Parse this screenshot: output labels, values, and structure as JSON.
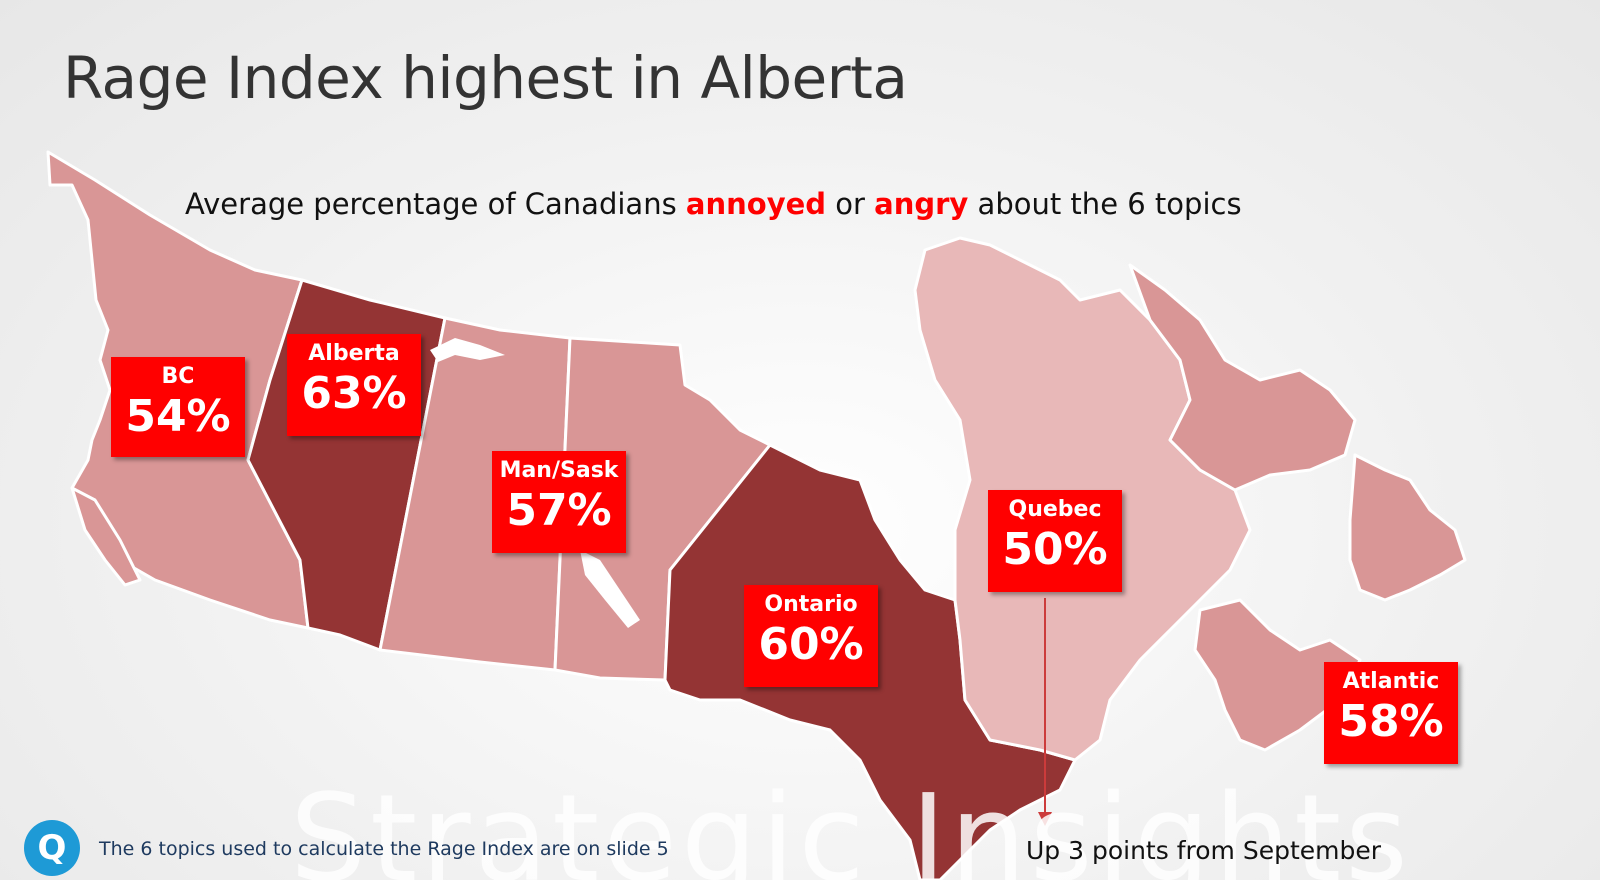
{
  "title": "Rage Index highest in Alberta",
  "subtitle": {
    "before": "Average percentage of Canadians ",
    "highlight1": "annoyed",
    "middle": " or ",
    "highlight2": "angry",
    "after": " about the 6 topics"
  },
  "watermark": "Strategic Insights",
  "colors": {
    "label_bg": "#ff0000",
    "region_dark": "#943434",
    "region_medium": "#d99696",
    "region_light": "#e8b8b8",
    "title_text": "#333333"
  },
  "regions": [
    {
      "name": "BC",
      "value": "54%",
      "shade": "medium"
    },
    {
      "name": "Alberta",
      "value": "63%",
      "shade": "dark"
    },
    {
      "name": "Man/Sask",
      "value": "57%",
      "shade": "medium"
    },
    {
      "name": "Ontario",
      "value": "60%",
      "shade": "dark"
    },
    {
      "name": "Quebec",
      "value": "50%",
      "shade": "light"
    },
    {
      "name": "Atlantic",
      "value": "58%",
      "shade": "medium"
    }
  ],
  "footnote": "The 6 topics used to calculate the Rage Index are on slide 5",
  "logo_letter": "Q",
  "note": "Up 3 points from September"
}
